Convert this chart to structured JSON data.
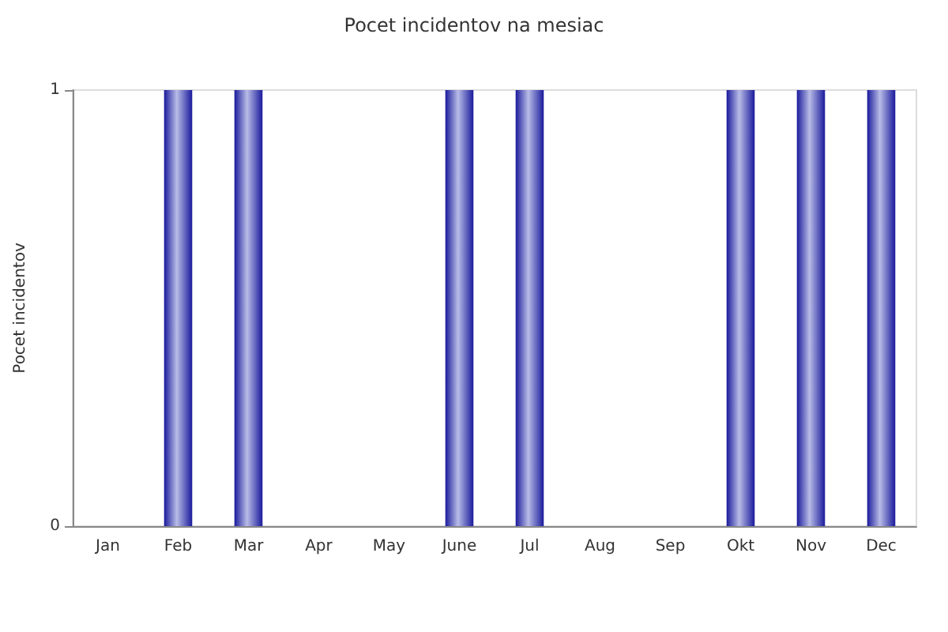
{
  "chart_data": {
    "type": "bar",
    "title": "Pocet incidentov na mesiac",
    "ylabel": "Pocet incidentov",
    "categories": [
      "Jan",
      "Feb",
      "Mar",
      "Apr",
      "May",
      "June",
      "Jul",
      "Aug",
      "Sep",
      "Okt",
      "Nov",
      "Dec"
    ],
    "values": [
      0,
      1,
      1,
      0,
      0,
      1,
      1,
      0,
      0,
      1,
      1,
      1
    ],
    "color": "#1a1a9c",
    "ylim": [
      0,
      1
    ],
    "yticks": [
      0,
      1
    ],
    "grid": false
  }
}
